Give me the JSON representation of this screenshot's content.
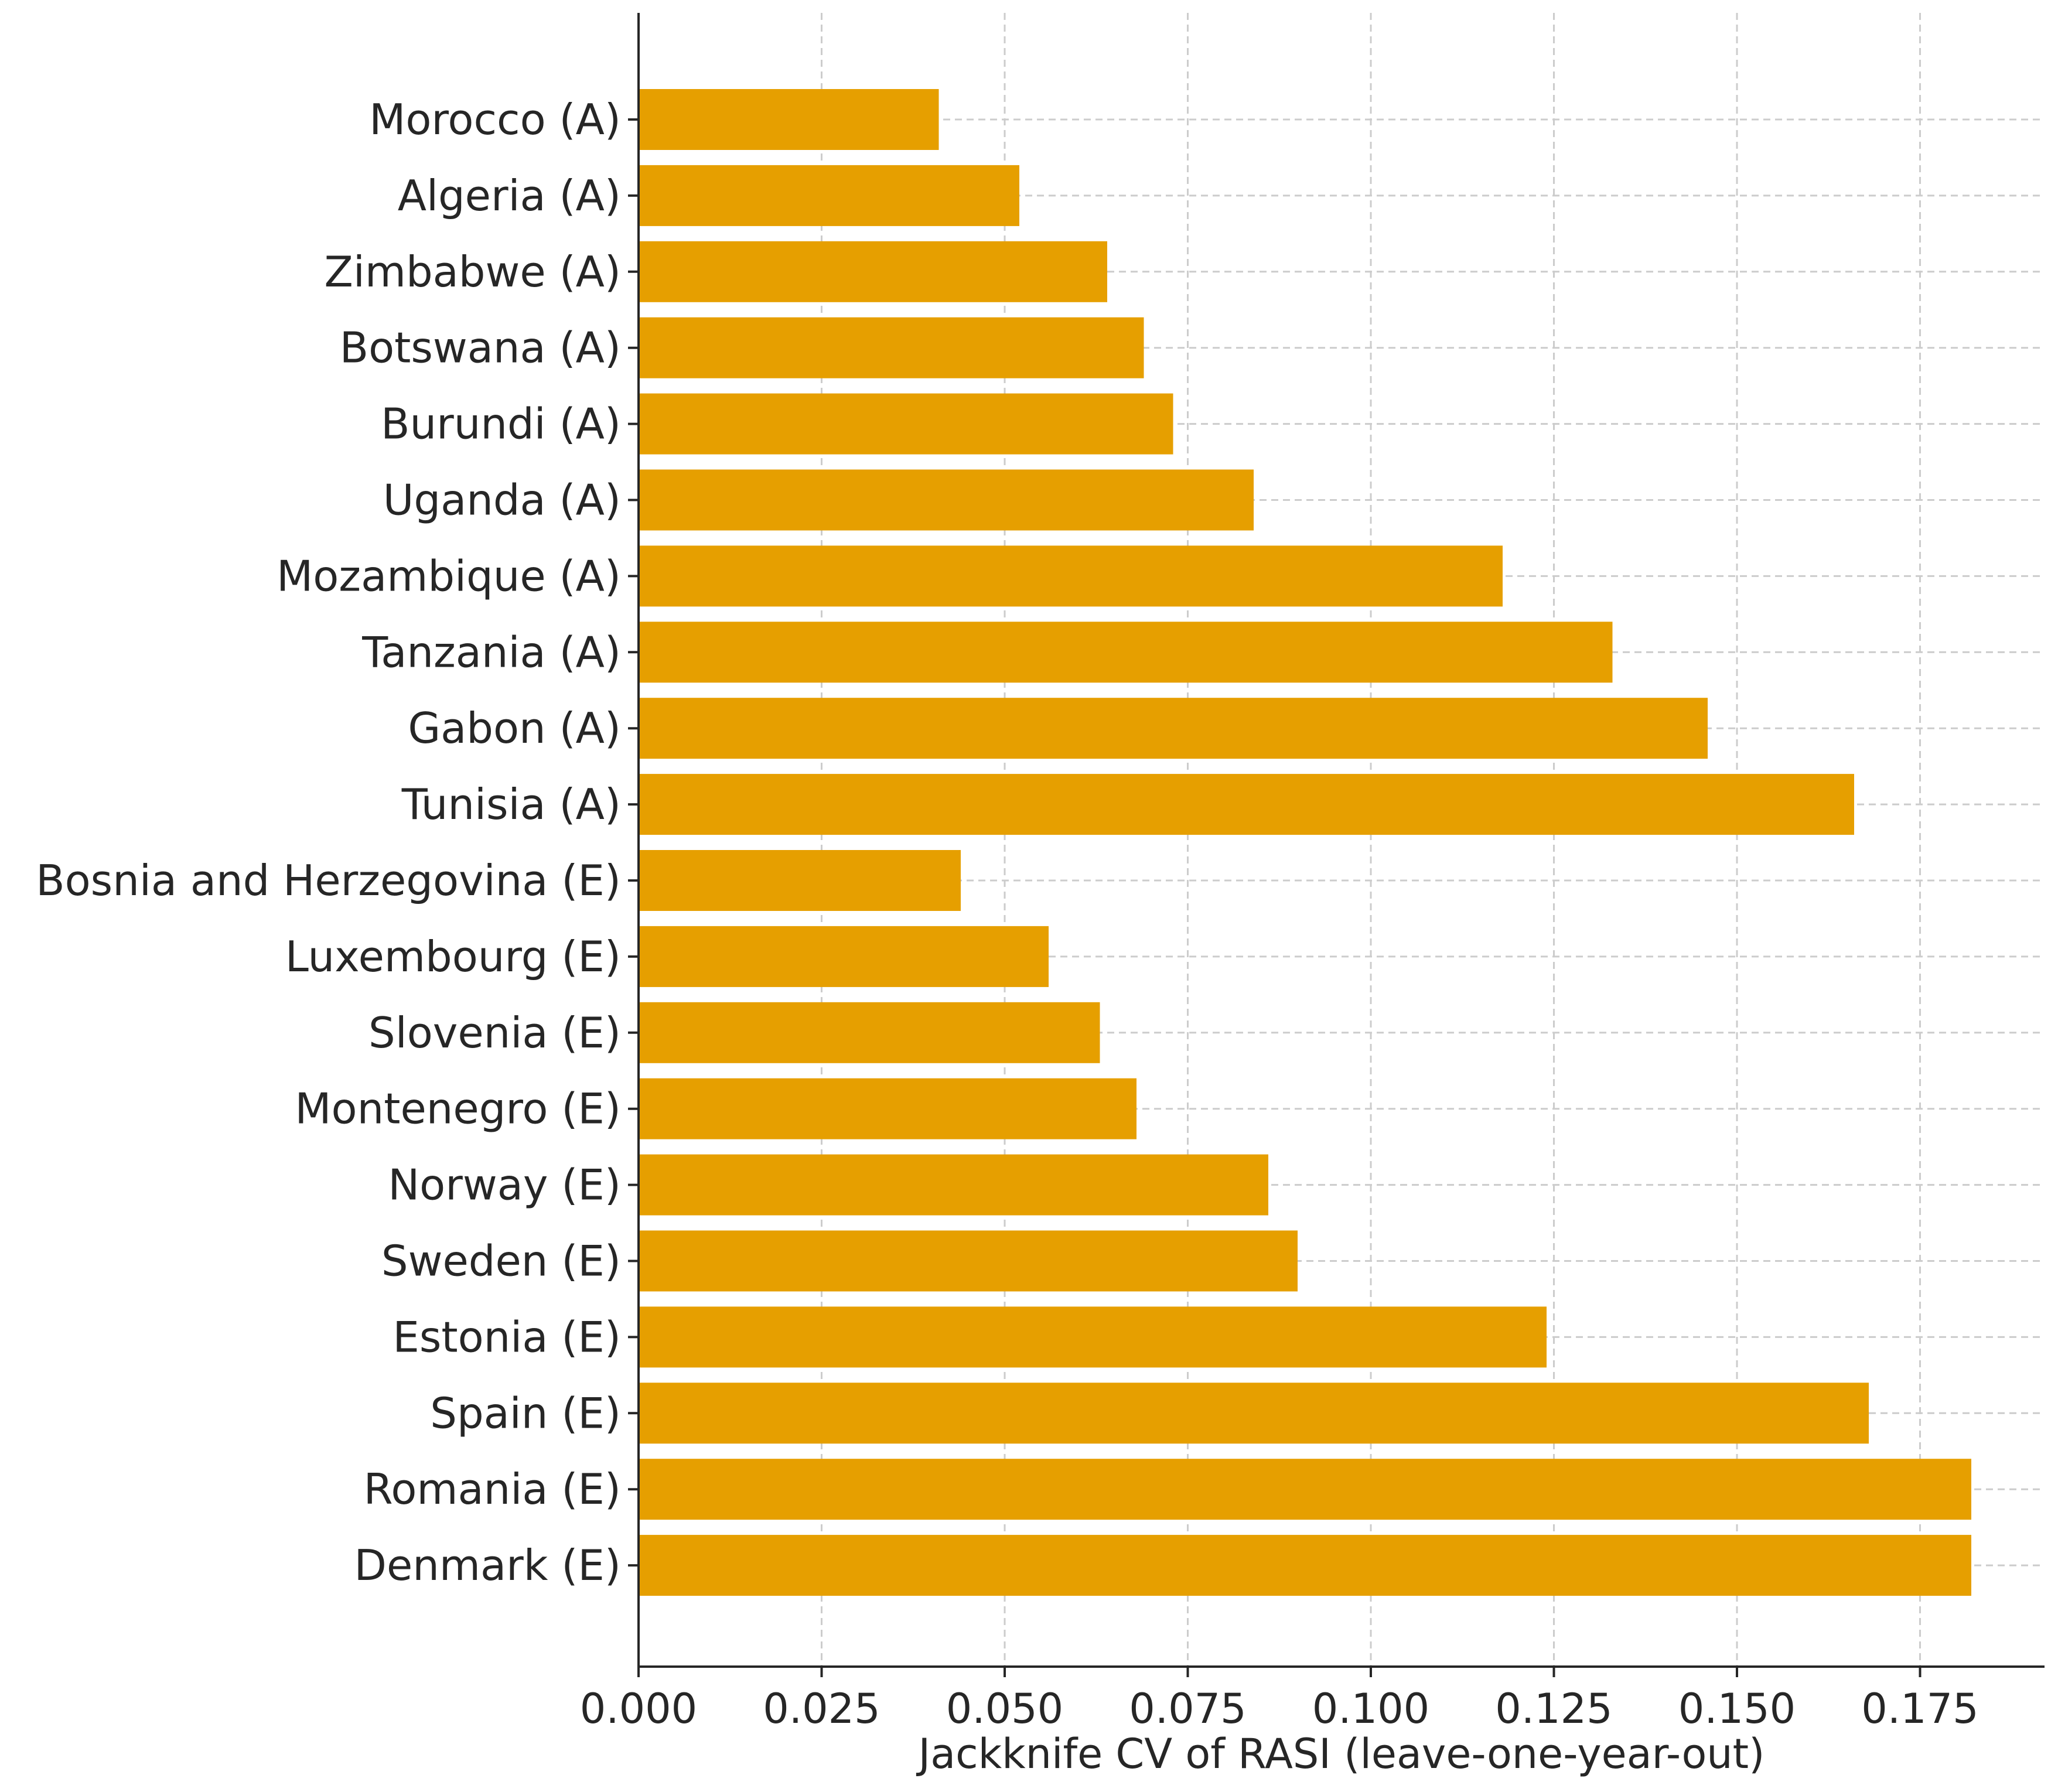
{
  "chart_data": {
    "type": "bar",
    "orientation": "horizontal",
    "categories": [
      "Morocco (A)",
      "Algeria (A)",
      "Zimbabwe (A)",
      "Botswana (A)",
      "Burundi (A)",
      "Uganda (A)",
      "Mozambique (A)",
      "Tanzania (A)",
      "Gabon (A)",
      "Tunisia (A)",
      "Bosnia and Herzegovina (E)",
      "Luxembourg (E)",
      "Slovenia (E)",
      "Montenegro (E)",
      "Norway (E)",
      "Sweden (E)",
      "Estonia (E)",
      "Spain (E)",
      "Romania (E)",
      "Denmark (E)"
    ],
    "values": [
      0.041,
      0.052,
      0.064,
      0.069,
      0.073,
      0.084,
      0.118,
      0.133,
      0.146,
      0.166,
      0.044,
      0.056,
      0.063,
      0.068,
      0.086,
      0.09,
      0.124,
      0.168,
      0.182,
      0.182
    ],
    "xticks": [
      "0.000",
      "0.025",
      "0.050",
      "0.075",
      "0.100",
      "0.125",
      "0.150",
      "0.175"
    ],
    "xtick_values": [
      0,
      0.025,
      0.05,
      0.075,
      0.1,
      0.125,
      0.15,
      0.175
    ],
    "xlabel": "Jackknife CV of RASI (leave-one-year-out)",
    "ylabel": "",
    "title": "",
    "xlim": [
      0,
      0.192
    ],
    "grid": true,
    "bar_color": "#E69F00"
  }
}
